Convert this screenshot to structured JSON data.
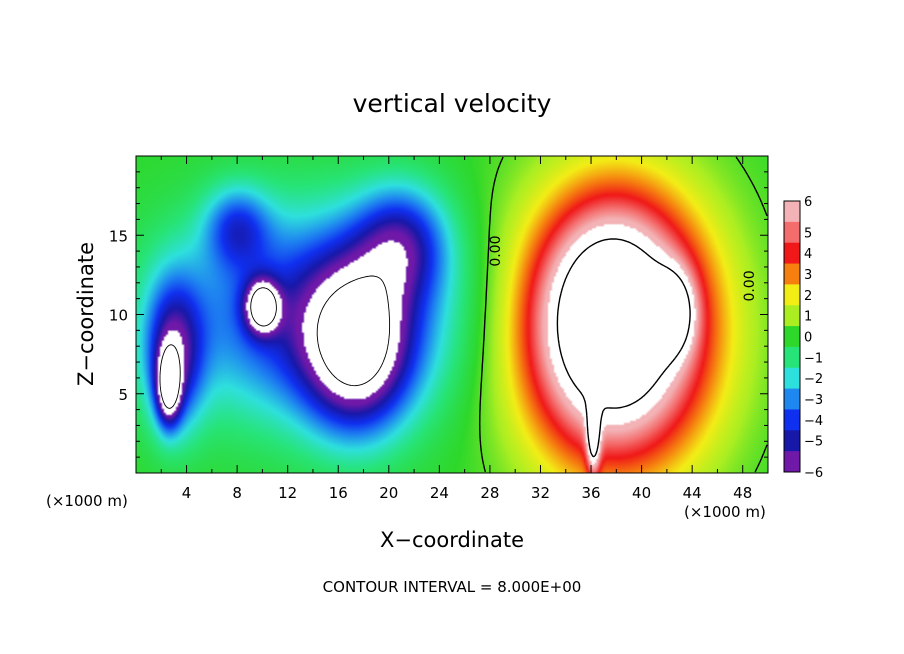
{
  "chart_data": {
    "type": "heatmap",
    "title": "vertical velocity",
    "xlabel": "X−coordinate",
    "ylabel": "Z−coordinate",
    "x_unit_left": "(×1000 m)",
    "x_unit_right": "(×1000 m)",
    "xlim": [
      0,
      50
    ],
    "ylim": [
      0,
      20
    ],
    "xticks": [
      4,
      8,
      12,
      16,
      20,
      24,
      28,
      32,
      36,
      40,
      44,
      48
    ],
    "yticks": [
      5,
      10,
      15
    ],
    "xtick_labels": [
      "4",
      "8",
      "12",
      "16",
      "20",
      "24",
      "28",
      "32",
      "36",
      "40",
      "44",
      "48"
    ],
    "ytick_labels": [
      "5",
      "10",
      "15"
    ],
    "colorbar": {
      "levels": [
        6,
        5,
        4,
        3,
        2,
        1,
        0,
        -1,
        -2,
        -3,
        -4,
        -5,
        -6
      ],
      "labels": [
        "6",
        "5",
        "4",
        "3",
        "2",
        "1",
        "0",
        "−1",
        "−2",
        "−3",
        "−4",
        "−5",
        "−6"
      ],
      "colors": [
        "#f3b3b6",
        "#f46d6d",
        "#f01818",
        "#f67f10",
        "#f3ed16",
        "#aaee22",
        "#2ed82a",
        "#27e478",
        "#2ee0dd",
        "#1f87f0",
        "#1030f0",
        "#1818a8",
        "#7018a8"
      ]
    },
    "contour_labels": [
      {
        "text": "0.00",
        "x": 28.8,
        "z": 14.0
      },
      {
        "text": "0.00",
        "x": 48.9,
        "z": 11.8
      }
    ],
    "footer": "CONTOUR INTERVAL = 8.000E+00",
    "features": [
      {
        "kind": "updraft",
        "x": 38,
        "z": 9,
        "rx": 7.5,
        "rz": 8.5,
        "w": 9
      },
      {
        "kind": "updraft",
        "x": 37.5,
        "z": 10,
        "rx": 4.5,
        "rz": 5.5,
        "w": 5
      },
      {
        "kind": "updraft",
        "x": 42.5,
        "z": 10.2,
        "rx": 1.6,
        "rz": 2.4,
        "w": 5
      },
      {
        "kind": "updraft",
        "x": 36.2,
        "z": 2.4,
        "rx": 0.5,
        "rz": 2.3,
        "w": 6
      },
      {
        "kind": "downdraft",
        "x": 14,
        "z": 10,
        "rx": 11,
        "rz": 6.5,
        "w": -4.5
      },
      {
        "kind": "downdraft",
        "x": 3,
        "z": 7.5,
        "rx": 2.2,
        "rz": 4.5,
        "w": -5
      },
      {
        "kind": "downdraft",
        "x": 21,
        "z": 14.5,
        "rx": 3.5,
        "rz": 3.5,
        "w": -4
      },
      {
        "kind": "downdraft",
        "x": 8,
        "z": 15.5,
        "rx": 2.5,
        "rz": 2.5,
        "w": -3
      },
      {
        "kind": "downdraft",
        "x": 17.5,
        "z": 8,
        "rx": 4,
        "rz": 5,
        "w": -7
      },
      {
        "kind": "downdraft",
        "x": 10,
        "z": 10.5,
        "rx": 1.3,
        "rz": 1.6,
        "w": -7
      },
      {
        "kind": "downdraft",
        "x": 2.6,
        "z": 5.5,
        "rx": 0.9,
        "rz": 2.2,
        "w": -7
      }
    ]
  }
}
